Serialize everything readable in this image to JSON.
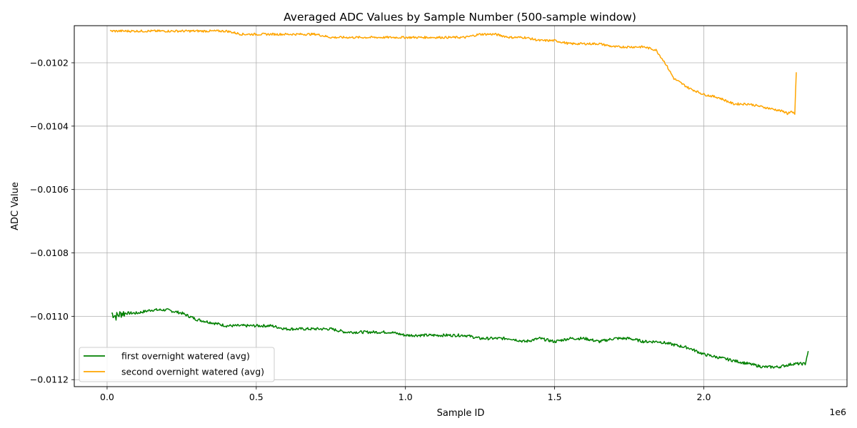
{
  "chart_data": {
    "type": "line",
    "title": "Averaged ADC Values by Sample Number (500-sample window)",
    "xlabel": "Sample ID",
    "ylabel": "ADC Value",
    "x_offset_text": "1e6",
    "xlim": [
      -0.11,
      2.48
    ],
    "ylim": [
      -0.011222,
      -0.010083
    ],
    "x_unit_scale": 1000000,
    "xticks": [
      0.0,
      0.5,
      1.0,
      1.5,
      2.0
    ],
    "xtick_labels": [
      "0.0",
      "0.5",
      "1.0",
      "1.5",
      "2.0"
    ],
    "yticks": [
      -0.0112,
      -0.011,
      -0.0108,
      -0.0106,
      -0.0104,
      -0.0102
    ],
    "ytick_labels": [
      "−0.0112",
      "−0.0110",
      "−0.0108",
      "−0.0106",
      "−0.0104",
      "−0.0102"
    ],
    "grid": true,
    "legend_position": "lower-left",
    "series": [
      {
        "name": "first overnight watered (avg)",
        "color": "#008000",
        "noise": 4.5e-06,
        "x": [
          0.015,
          0.03,
          0.05,
          0.1,
          0.15,
          0.2,
          0.25,
          0.3,
          0.35,
          0.4,
          0.45,
          0.5,
          0.55,
          0.6,
          0.65,
          0.7,
          0.75,
          0.8,
          0.85,
          0.9,
          0.95,
          1.0,
          1.05,
          1.1,
          1.15,
          1.2,
          1.25,
          1.3,
          1.35,
          1.4,
          1.45,
          1.5,
          1.55,
          1.6,
          1.65,
          1.7,
          1.75,
          1.8,
          1.85,
          1.9,
          1.95,
          2.0,
          2.05,
          2.1,
          2.15,
          2.2,
          2.25,
          2.3,
          2.34,
          2.35
        ],
        "y": [
          -0.01099,
          -0.011,
          -0.01099,
          -0.01099,
          -0.01098,
          -0.01098,
          -0.01099,
          -0.01101,
          -0.01102,
          -0.01103,
          -0.01103,
          -0.01103,
          -0.01103,
          -0.01104,
          -0.01104,
          -0.01104,
          -0.01104,
          -0.01105,
          -0.01105,
          -0.01105,
          -0.01105,
          -0.01106,
          -0.01106,
          -0.01106,
          -0.01106,
          -0.01106,
          -0.01107,
          -0.01107,
          -0.01107,
          -0.01108,
          -0.01107,
          -0.01108,
          -0.01107,
          -0.01107,
          -0.01108,
          -0.01107,
          -0.01107,
          -0.01108,
          -0.01108,
          -0.01109,
          -0.0111,
          -0.01112,
          -0.01113,
          -0.01114,
          -0.01115,
          -0.01116,
          -0.01116,
          -0.01115,
          -0.01115,
          -0.01111
        ]
      },
      {
        "name": "second overnight watered (avg)",
        "color": "#FFA500",
        "noise": 3.5e-06,
        "x": [
          0.01,
          0.05,
          0.1,
          0.15,
          0.2,
          0.25,
          0.3,
          0.35,
          0.4,
          0.45,
          0.5,
          0.55,
          0.6,
          0.65,
          0.7,
          0.75,
          0.8,
          0.85,
          0.9,
          0.95,
          1.0,
          1.05,
          1.1,
          1.15,
          1.2,
          1.25,
          1.3,
          1.35,
          1.4,
          1.45,
          1.5,
          1.55,
          1.6,
          1.65,
          1.7,
          1.75,
          1.8,
          1.84,
          1.87,
          1.9,
          1.95,
          2.0,
          2.05,
          2.1,
          2.15,
          2.2,
          2.25,
          2.29,
          2.305,
          2.31
        ],
        "y": [
          -0.0101,
          -0.0101,
          -0.0101,
          -0.0101,
          -0.0101,
          -0.0101,
          -0.0101,
          -0.0101,
          -0.0101,
          -0.01011,
          -0.01011,
          -0.01011,
          -0.01011,
          -0.01011,
          -0.01011,
          -0.01012,
          -0.01012,
          -0.01012,
          -0.01012,
          -0.01012,
          -0.01012,
          -0.01012,
          -0.01012,
          -0.01012,
          -0.01012,
          -0.01011,
          -0.01011,
          -0.01012,
          -0.01012,
          -0.01013,
          -0.01013,
          -0.01014,
          -0.01014,
          -0.01014,
          -0.01015,
          -0.01015,
          -0.01015,
          -0.01016,
          -0.0102,
          -0.01025,
          -0.01028,
          -0.0103,
          -0.01031,
          -0.01033,
          -0.01033,
          -0.01034,
          -0.01035,
          -0.01036,
          -0.01036,
          -0.01023
        ]
      }
    ]
  }
}
